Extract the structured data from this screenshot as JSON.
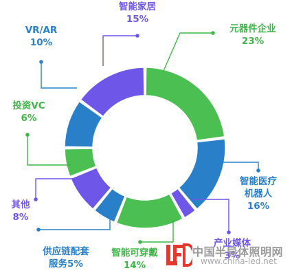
{
  "chart_data": {
    "type": "donut",
    "title": "",
    "unit": "%",
    "slices": [
      {
        "label": "元器件企业",
        "value": 23,
        "color": "#4cbf52",
        "label_color": "#3fb548"
      },
      {
        "label": "智能医疗机器人",
        "label_lines": [
          "智能医疗",
          "机器人"
        ],
        "value": 16,
        "color": "#2a80c8",
        "label_color": "#2a80c8"
      },
      {
        "label": "产业媒体",
        "value": 3,
        "color": "#6e57e8",
        "label_color": "#6e57e8"
      },
      {
        "label": "智能可穿戴",
        "value": 14,
        "color": "#4cbf52",
        "label_color": "#3fb548"
      },
      {
        "label": "供应链配套服务",
        "label_lines": [
          "供应链配套",
          "服务5%"
        ],
        "value": 5,
        "color": "#2a80c8",
        "label_color": "#2a80c8",
        "inline_value": true
      },
      {
        "label": "其他",
        "value": 8,
        "color": "#6e57e8",
        "label_color": "#6e57e8"
      },
      {
        "label": "投资VC",
        "value": 6,
        "color": "#4cbf52",
        "label_color": "#3fb548"
      },
      {
        "label": "VR/AR",
        "value": 10,
        "color": "#2a80c8",
        "label_color": "#2a80c8"
      },
      {
        "label": "智能家居",
        "value": 15,
        "color": "#6e57e8",
        "label_color": "#6e57e8"
      }
    ]
  },
  "watermark": {
    "logo_text": "LED",
    "site_name": "中国半导体照明网",
    "url": "www.china-led.net"
  }
}
